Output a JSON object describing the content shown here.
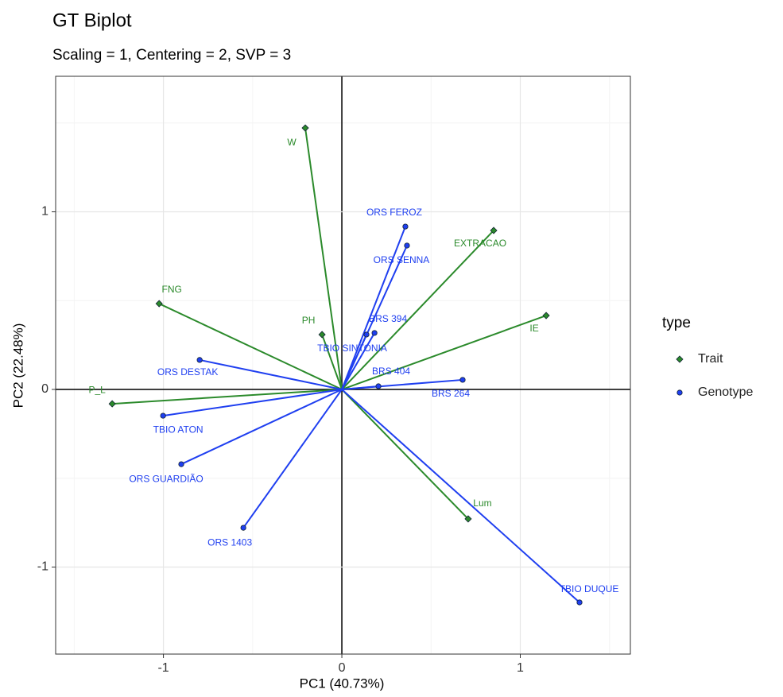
{
  "chart_data": {
    "type": "biplot",
    "title": "GT Biplot",
    "subtitle": "Scaling = 1, Centering = 2, SVP = 3",
    "x_label": "PC1 (40.73%)",
    "y_label": "PC2 (22.48%)",
    "xlim": [
      -1.604,
      1.617
    ],
    "ylim": [
      -1.49,
      1.763
    ],
    "xticks": [
      -1,
      0,
      1
    ],
    "yticks": [
      -1,
      0,
      1
    ],
    "x_minor": [
      -1.5,
      -0.5,
      0.5,
      1.5
    ],
    "y_minor": [
      -1.5,
      -0.5,
      0.5,
      1.5
    ],
    "grid": true,
    "zero_lines": true,
    "legend_title": "type",
    "legend_position": "right",
    "series": [
      {
        "name": "Trait",
        "color": "#2b8a2b",
        "marker": "diamond",
        "labels": [
          "W",
          "EXTRACAO",
          "IE",
          "FNG",
          "PH",
          "P_L",
          "Lum"
        ],
        "x": [
          -0.205,
          0.851,
          1.145,
          -1.024,
          -0.111,
          -1.287,
          0.708
        ],
        "y": [
          1.472,
          0.895,
          0.416,
          0.483,
          0.309,
          -0.081,
          -0.729
        ]
      },
      {
        "name": "Genotype",
        "color": "#1f3ff0",
        "marker": "circle",
        "labels": [
          "ORS FEROZ",
          "ORS SENNA",
          "BRS 394",
          "TBIO SINTONIA",
          "BRS 404",
          "BRS 264",
          "ORS DESTAK",
          "TBIO ATON",
          "ORS GUARDIÃO",
          "ORS 1403",
          "TBIO DUQUE"
        ],
        "x": [
          0.356,
          0.365,
          0.183,
          0.138,
          0.205,
          0.677,
          -0.797,
          -1.002,
          -0.9,
          -0.552,
          1.332
        ],
        "y": [
          0.917,
          0.81,
          0.318,
          0.309,
          0.018,
          0.054,
          0.166,
          -0.148,
          -0.421,
          -0.779,
          -1.199
        ]
      }
    ]
  }
}
